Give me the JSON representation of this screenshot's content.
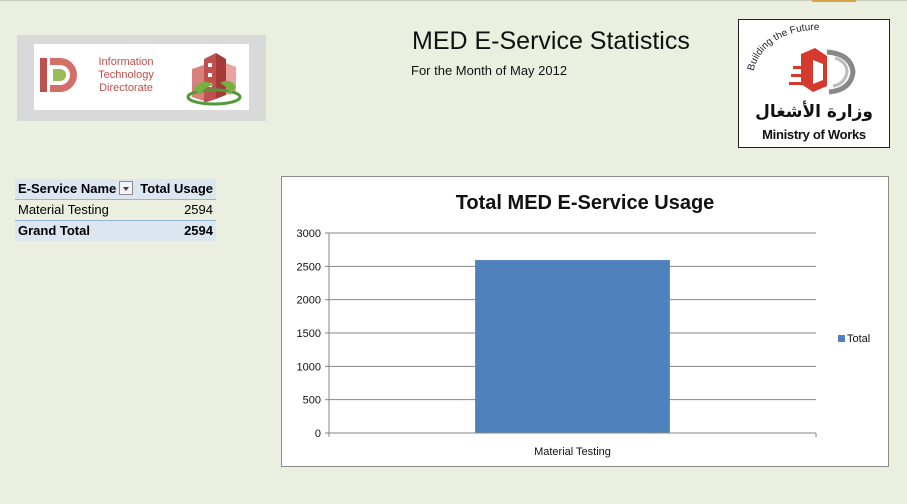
{
  "header": {
    "title": "MED E-Service Statistics",
    "subtitle": "For the Month of May 2012"
  },
  "itd_logo": {
    "lines": [
      "Information",
      "Technology",
      "Directorate"
    ],
    "color": "#c0504d"
  },
  "ministry_logo": {
    "arabic_name": "وزارة الأشغال",
    "english_name": "Ministry of Works",
    "slogan": "Building the Future"
  },
  "pivot_table": {
    "headers": {
      "name": "E-Service Name",
      "total": "Total Usage"
    },
    "rows": [
      {
        "name": "Material Testing",
        "total": "2594"
      }
    ],
    "grand_total": {
      "label": "Grand Total",
      "total": "2594"
    }
  },
  "chart_data": {
    "type": "bar",
    "title": "Total MED E-Service Usage",
    "categories": [
      "Material Testing"
    ],
    "series": [
      {
        "name": "Total",
        "values": [
          2594
        ],
        "color": "#4f81bd"
      }
    ],
    "ylim": [
      0,
      3000
    ],
    "yticks": [
      0,
      500,
      1000,
      1500,
      2000,
      2500,
      3000
    ],
    "xlabel": "",
    "ylabel": "",
    "grid": true,
    "legend": "right"
  }
}
